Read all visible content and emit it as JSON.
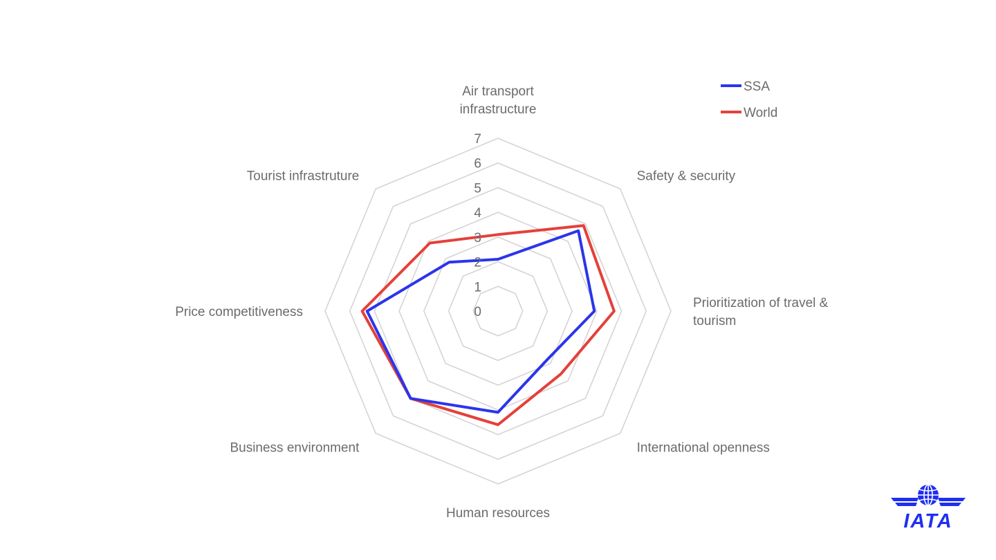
{
  "chart_data": {
    "type": "radar",
    "axes": [
      [
        "Air transport",
        "infrastructure"
      ],
      [
        "Safety & security"
      ],
      [
        "Prioritization of travel &",
        "tourism"
      ],
      [
        "International openness"
      ],
      [
        "Human resources"
      ],
      [
        "Business environment"
      ],
      [
        "Price competitiveness"
      ],
      [
        "Tourist infrastruture"
      ]
    ],
    "rlim": [
      0,
      7
    ],
    "ticks": [
      "0",
      "1",
      "2",
      "3",
      "4",
      "5",
      "6",
      "7"
    ],
    "grid": true,
    "legend_position": "top-right",
    "series": [
      {
        "name": "SSA",
        "color": "#2b35ea",
        "values": [
          2.1,
          4.6,
          3.9,
          2.8,
          4.1,
          5.0,
          5.3,
          2.8
        ]
      },
      {
        "name": "World",
        "color": "#e5403a",
        "values": [
          3.1,
          4.9,
          4.7,
          3.6,
          4.6,
          5.0,
          5.5,
          3.9
        ]
      }
    ]
  },
  "logo": {
    "text": "IATA",
    "color": "#1e2ff0"
  }
}
